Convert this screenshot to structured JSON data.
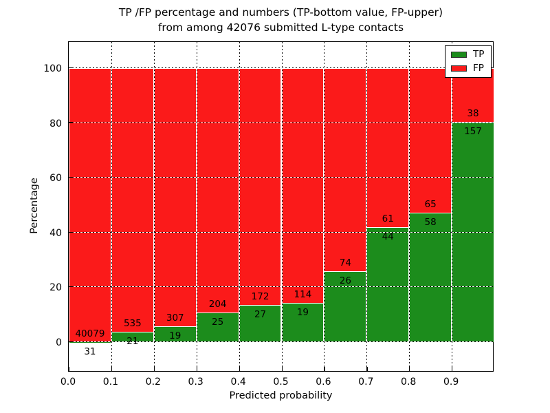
{
  "figure": {
    "title_line1": "TP /FP percentage and numbers (TP-bottom value, FP-upper)",
    "title_line2": "from among 42076 submitted L-type contacts",
    "xlabel": "Predicted probability",
    "ylabel": "Percentage",
    "background_color": "#ffffff"
  },
  "legend": {
    "position": "upper right",
    "items": [
      {
        "label": "TP",
        "color": "#1c8c1c"
      },
      {
        "label": "FP",
        "color": "#fb1a1a"
      }
    ]
  },
  "chart_data": {
    "type": "bar",
    "stacked": true,
    "normalized": "each bin scaled to 100%",
    "title": "TP /FP percentage and numbers (TP-bottom value, FP-upper) from among 42076 submitted L-type contacts",
    "total_contacts": 42076,
    "xlabel": "Predicted probability",
    "ylabel": "Percentage",
    "x_bins": [
      "0.0-0.1",
      "0.1-0.2",
      "0.2-0.3",
      "0.3-0.4",
      "0.4-0.5",
      "0.5-0.6",
      "0.6-0.7",
      "0.7-0.8",
      "0.8-0.9",
      "0.9-1.0"
    ],
    "x_tick_labels": [
      "0.0",
      "0.1",
      "0.2",
      "0.3",
      "0.4",
      "0.5",
      "0.6",
      "0.7",
      "0.8",
      "0.9"
    ],
    "y_tick_values": [
      0,
      20,
      40,
      60,
      80,
      100
    ],
    "xlim": [
      0.0,
      1.0
    ],
    "ylim": [
      -10.5,
      110.5
    ],
    "grid": "dotted, both axes",
    "legend_position": "upper right",
    "series": [
      {
        "name": "TP",
        "role": "bottom",
        "color": "#1c8c1c",
        "counts": [
          31,
          21,
          19,
          25,
          27,
          19,
          26,
          44,
          58,
          157
        ]
      },
      {
        "name": "FP",
        "role": "top",
        "color": "#fb1a1a",
        "counts": [
          40079,
          535,
          307,
          204,
          172,
          114,
          74,
          61,
          65,
          38
        ]
      }
    ],
    "tp_percent_of_bin": [
      0.08,
      3.78,
      5.83,
      10.92,
      13.57,
      14.29,
      26.0,
      41.9,
      47.15,
      80.51
    ]
  }
}
